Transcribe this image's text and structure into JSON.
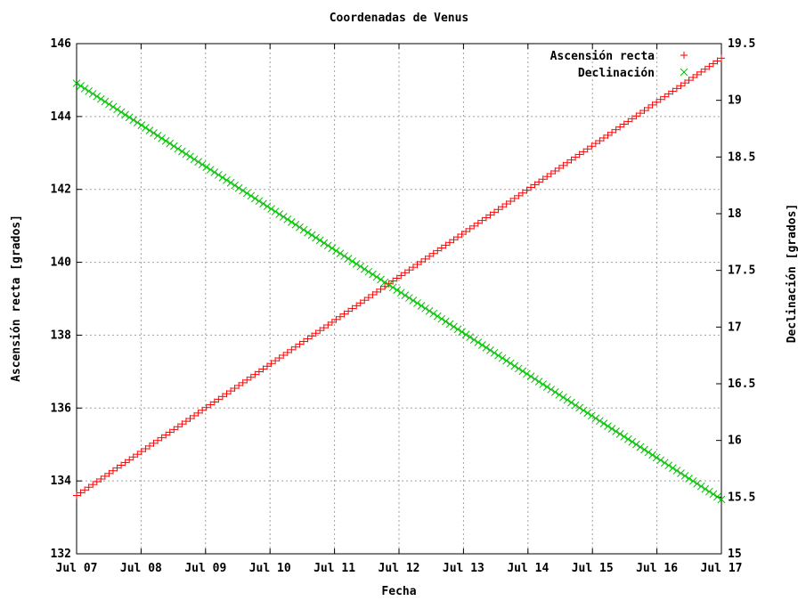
{
  "chart_data": {
    "type": "scatter",
    "title": "Coordenadas de Venus",
    "xlabel": "Fecha",
    "ylabel_left": "Ascensión recta [grados]",
    "ylabel_right": "Declinación [grados]",
    "x_tick_labels": [
      "Jul 07",
      "Jul 08",
      "Jul 09",
      "Jul 10",
      "Jul 11",
      "Jul 12",
      "Jul 13",
      "Jul 14",
      "Jul 15",
      "Jul 16",
      "Jul 17"
    ],
    "xlim": [
      "Jul 07",
      "Jul 17"
    ],
    "ylim_left": [
      132,
      146
    ],
    "ylim_right": [
      15,
      19.5
    ],
    "y_ticks_left": [
      132,
      134,
      136,
      138,
      140,
      142,
      144,
      146
    ],
    "y_ticks_right": [
      15,
      15.5,
      16,
      16.5,
      17,
      17.5,
      18,
      18.5,
      19,
      19.5
    ],
    "y_tick_labels_left": [
      "132",
      "134",
      "136",
      "138",
      "140",
      "142",
      "144",
      "146"
    ],
    "y_tick_labels_right": [
      "15",
      "15.5",
      "16",
      "16.5",
      "17",
      "17.5",
      "18",
      "18.5",
      "19",
      "19.5"
    ],
    "grid": true,
    "legend_position": "top-right",
    "series": [
      {
        "name": "Ascensión recta",
        "axis": "left",
        "marker": "+",
        "color": "#ff0000",
        "x_start": "Jul 07",
        "x_end": "Jul 17",
        "y_start": 133.6,
        "y_end": 145.6,
        "points": 160
      },
      {
        "name": "Declinación",
        "axis": "right",
        "marker": "x",
        "color": "#00c000",
        "x_start": "Jul 07",
        "x_end": "Jul 17",
        "y_start": 19.15,
        "y_end": 15.48,
        "points": 160
      }
    ]
  }
}
